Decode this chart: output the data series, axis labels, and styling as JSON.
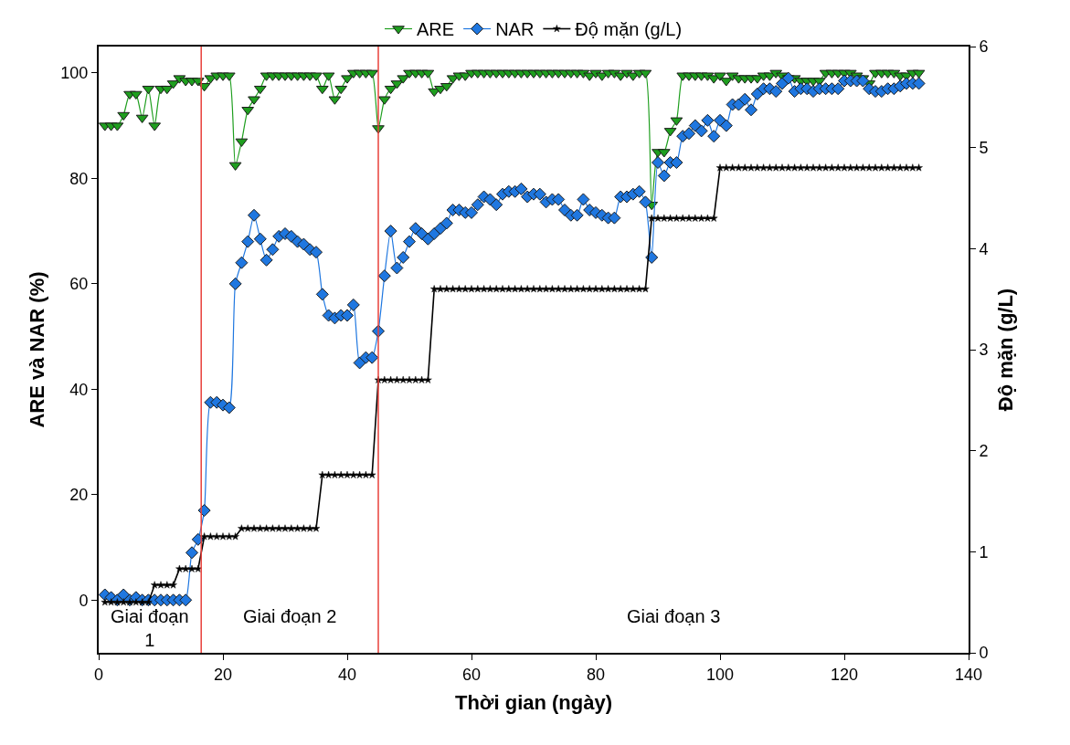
{
  "chart_data": {
    "type": "line",
    "xlabel": "Thời gian (ngày)",
    "ylabel": "ARE và NAR (%)",
    "y2label": "Độ mặn (g/L)",
    "x": [
      1,
      2,
      3,
      4,
      5,
      6,
      7,
      8,
      9,
      10,
      11,
      12,
      13,
      14,
      15,
      16,
      17,
      18,
      19,
      20,
      21,
      22,
      23,
      24,
      25,
      26,
      27,
      28,
      29,
      30,
      31,
      32,
      33,
      34,
      35,
      36,
      37,
      38,
      39,
      40,
      41,
      42,
      43,
      44,
      45,
      46,
      47,
      48,
      49,
      50,
      51,
      52,
      53,
      54,
      55,
      56,
      57,
      58,
      59,
      60,
      61,
      62,
      63,
      64,
      65,
      66,
      67,
      68,
      69,
      70,
      71,
      72,
      73,
      74,
      75,
      76,
      77,
      78,
      79,
      80,
      81,
      82,
      83,
      84,
      85,
      86,
      87,
      88,
      89,
      90,
      91,
      92,
      93,
      94,
      95,
      96,
      97,
      98,
      99,
      100,
      101,
      102,
      103,
      104,
      105,
      106,
      107,
      108,
      109,
      110,
      111,
      112,
      113,
      114,
      115,
      116,
      117,
      118,
      119,
      120,
      121,
      122,
      123,
      124,
      125,
      126,
      127,
      128,
      129,
      130,
      131,
      132
    ],
    "series": [
      {
        "name": "ARE",
        "color": "#1e9e1e",
        "marker": "triangle",
        "values": [
          90,
          90,
          90,
          92,
          96,
          96,
          91.5,
          97,
          90,
          97,
          97,
          98,
          99,
          98.5,
          98.5,
          98.5,
          97.5,
          99,
          99.5,
          99.5,
          99.5,
          82.5,
          87,
          93,
          95,
          97,
          99.5,
          99.5,
          99.5,
          99.5,
          99.5,
          99.5,
          99.5,
          99.5,
          99.5,
          97,
          99.5,
          95,
          97,
          99,
          100,
          100,
          100,
          100,
          89.5,
          95,
          97,
          98,
          99,
          100,
          100,
          100,
          100,
          96.5,
          97,
          97.5,
          99,
          99.5,
          99.5,
          100,
          100,
          100,
          100,
          100,
          100,
          100,
          100,
          100,
          100,
          100,
          100,
          100,
          100,
          100,
          100,
          100,
          100,
          100,
          99.5,
          100,
          99.5,
          100,
          100,
          99.5,
          100,
          99.5,
          100,
          100,
          75,
          85,
          85,
          89,
          91,
          99.5,
          99.5,
          99.5,
          99.5,
          99.5,
          99,
          99.5,
          98.5,
          99.5,
          99,
          99,
          99,
          99,
          99.5,
          99.5,
          100,
          99.5,
          99,
          99,
          98.5,
          98.5,
          98.5,
          98.5,
          100,
          100,
          100,
          100,
          100,
          99.5,
          99,
          98,
          100,
          100,
          100,
          100,
          99.5,
          99.5,
          100,
          100
        ]
      },
      {
        "name": "NAR",
        "color": "#1f77e0",
        "marker": "diamond",
        "values": [
          1,
          0.5,
          0,
          1,
          0,
          0.5,
          0,
          0,
          0,
          0,
          0,
          0,
          0,
          0,
          9,
          11.5,
          17,
          37.5,
          37.5,
          37,
          36.5,
          60,
          64,
          68,
          73,
          68.5,
          64.5,
          66.5,
          69,
          69.5,
          69,
          68,
          67.5,
          66.5,
          66,
          58,
          54,
          53.5,
          54,
          54,
          56,
          45,
          46,
          46,
          51,
          61.5,
          70,
          63,
          65,
          68,
          70.5,
          69.5,
          68.5,
          69.5,
          70.5,
          71.5,
          74,
          74,
          73.5,
          73.5,
          75,
          76.5,
          76,
          75,
          77,
          77.5,
          77.5,
          78,
          76.5,
          77,
          77,
          75.5,
          76,
          76,
          74,
          73,
          73,
          76,
          74,
          73.5,
          73,
          72.5,
          72.5,
          76.5,
          76.5,
          77,
          77.5,
          75.5,
          65,
          83,
          80.5,
          83,
          83,
          88,
          88.5,
          90,
          89,
          91,
          88,
          91,
          90,
          94,
          94,
          95,
          93,
          96,
          97,
          97,
          96.5,
          98,
          99,
          96.5,
          97,
          97,
          96.5,
          97,
          97,
          97,
          97,
          98.5,
          98.5,
          98.5,
          98.5,
          97,
          96.5,
          96.5,
          97,
          97,
          97.5,
          98,
          98,
          98
        ]
      },
      {
        "name": "Độ mặn (g/L)",
        "color": "#000000",
        "marker": "star",
        "axis": "y2",
        "values": [
          0.5,
          0.5,
          0.5,
          0.5,
          0.5,
          0.5,
          0.5,
          0.5,
          0.67,
          0.67,
          0.67,
          0.67,
          0.83,
          0.83,
          0.83,
          0.83,
          1.15,
          1.15,
          1.15,
          1.15,
          1.15,
          1.15,
          1.23,
          1.23,
          1.23,
          1.23,
          1.23,
          1.23,
          1.23,
          1.23,
          1.23,
          1.23,
          1.23,
          1.23,
          1.23,
          1.76,
          1.76,
          1.76,
          1.76,
          1.76,
          1.76,
          1.76,
          1.76,
          1.76,
          2.7,
          2.7,
          2.7,
          2.7,
          2.7,
          2.7,
          2.7,
          2.7,
          2.7,
          3.6,
          3.6,
          3.6,
          3.6,
          3.6,
          3.6,
          3.6,
          3.6,
          3.6,
          3.6,
          3.6,
          3.6,
          3.6,
          3.6,
          3.6,
          3.6,
          3.6,
          3.6,
          3.6,
          3.6,
          3.6,
          3.6,
          3.6,
          3.6,
          3.6,
          3.6,
          3.6,
          3.6,
          3.6,
          3.6,
          3.6,
          3.6,
          3.6,
          3.6,
          3.6,
          4.3,
          4.3,
          4.3,
          4.3,
          4.3,
          4.3,
          4.3,
          4.3,
          4.3,
          4.3,
          4.3,
          4.8,
          4.8,
          4.8,
          4.8,
          4.8,
          4.8,
          4.8,
          4.8,
          4.8,
          4.8,
          4.8,
          4.8,
          4.8,
          4.8,
          4.8,
          4.8,
          4.8,
          4.8,
          4.8,
          4.8,
          4.8,
          4.8,
          4.8,
          4.8,
          4.8,
          4.8,
          4.8,
          4.8,
          4.8,
          4.8,
          4.8,
          4.8,
          4.8
        ]
      }
    ],
    "xlim": [
      0,
      140
    ],
    "xticks": [
      0,
      20,
      40,
      60,
      80,
      100,
      120,
      140
    ],
    "ylim": [
      -10,
      105
    ],
    "yticks": [
      0,
      20,
      40,
      60,
      80,
      100
    ],
    "y2lim": [
      0,
      6
    ],
    "y2ticks": [
      0,
      1,
      2,
      3,
      4,
      5,
      6
    ],
    "ref_lines": [
      {
        "axis": "x",
        "value": 16.5,
        "color": "#e8403a"
      },
      {
        "axis": "x",
        "value": 45,
        "color": "#e8403a"
      }
    ],
    "annotations": [
      "Giai đoạn 1",
      "Giai đoạn 2",
      "Giai đoạn 3"
    ],
    "grid": false,
    "legend": "top",
    "line_style": "solid"
  }
}
